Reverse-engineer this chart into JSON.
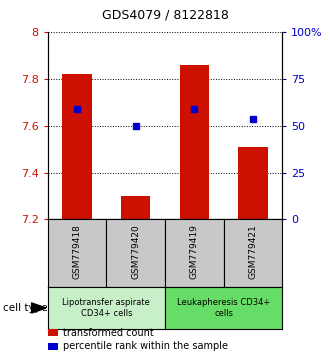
{
  "title": "GDS4079 / 8122818",
  "samples": [
    "GSM779418",
    "GSM779420",
    "GSM779419",
    "GSM779421"
  ],
  "red_values": [
    7.82,
    7.3,
    7.86,
    7.51
  ],
  "blue_values": [
    7.67,
    7.6,
    7.67,
    7.63
  ],
  "ylim_left": [
    7.2,
    8.0
  ],
  "ylim_right": [
    0,
    100
  ],
  "yticks_left": [
    7.2,
    7.4,
    7.6,
    7.8,
    8.0
  ],
  "yticks_right": [
    0,
    25,
    50,
    75,
    100
  ],
  "ytick_labels_left": [
    "7.2",
    "7.4",
    "7.6",
    "7.8",
    "8"
  ],
  "ytick_labels_right": [
    "0",
    "25",
    "50",
    "75",
    "100%"
  ],
  "groups": [
    {
      "label": "Lipotransfer aspirate\nCD34+ cells",
      "samples": [
        0,
        1
      ],
      "color": "#c8f0c8"
    },
    {
      "label": "Leukapheresis CD34+\ncells",
      "samples": [
        2,
        3
      ],
      "color": "#66dd66"
    }
  ],
  "bar_color": "#cc1100",
  "dot_color": "#0000cc",
  "bar_width": 0.5,
  "background_plot": "#ffffff",
  "background_label_gray": "#c8c8c8",
  "ylabel_left_color": "#cc1100",
  "ylabel_right_color": "#0000cc",
  "cell_type_label": "cell type",
  "legend_items": [
    {
      "color": "#cc1100",
      "marker": "s",
      "label": "transformed count"
    },
    {
      "color": "#0000cc",
      "marker": "s",
      "label": "percentile rank within the sample"
    }
  ]
}
